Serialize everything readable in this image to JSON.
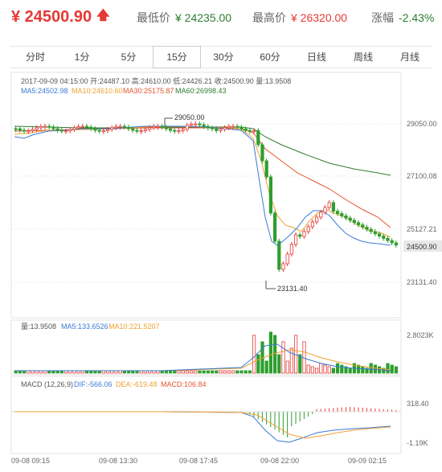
{
  "header": {
    "price": "¥ 24500.90",
    "low_label": "最低价",
    "low_value": "¥ 24235.00",
    "high_label": "最高价",
    "high_value": "¥ 26320.00",
    "change_label": "涨幅",
    "change_value": "-2.43%"
  },
  "tabs": [
    {
      "label": "分时",
      "active": false
    },
    {
      "label": "1分",
      "active": false
    },
    {
      "label": "5分",
      "active": false
    },
    {
      "label": "15分",
      "active": true
    },
    {
      "label": "30分",
      "active": false
    },
    {
      "label": "60分",
      "active": false
    },
    {
      "label": "日线",
      "active": false
    },
    {
      "label": "周线",
      "active": false
    },
    {
      "label": "月线",
      "active": false
    }
  ],
  "info": {
    "line1": "2017-09-09 04:15:00  开:24487.10  高:24610.00  低:24426.21  收:24500.90  量:13.9508",
    "ma5": "MA5:24502.98",
    "ma10": "MA10:24610.60",
    "ma30": "MA30:25175.87",
    "ma60": "MA60:26998.43",
    "vol": "量:13.9508",
    "vol_ma5": "MA5:133.6526",
    "vol_ma10": "MA10:221.5207",
    "macd_title": "MACD  (12,26,9)",
    "dif": "DIF:-566.06",
    "dea": "DEA:-619.48",
    "macd": "MACD:106.84"
  },
  "annotations": {
    "peak": "29050.00",
    "trough": "23131.40",
    "last_price_tag": "24500.90"
  },
  "colors": {
    "up": "#e53935",
    "down": "#2e9e2e",
    "ma5": "#3a7bd5",
    "ma10": "#f0a030",
    "ma30": "#e5532d",
    "ma60": "#2e7d32"
  },
  "chart_data": {
    "type": "candlestick",
    "y_ticks": [
      "29050.00",
      "27100.08",
      "25127.21",
      "23131.40"
    ],
    "volume_ticks": [
      "2.8023K"
    ],
    "macd_ticks": [
      "318.40",
      "-1.19K"
    ],
    "x_ticks": [
      "09-08 09:15",
      "09-08 13:30",
      "09-08 17:45",
      "09-08 22:00",
      "09-09 02:15"
    ],
    "ylim": [
      22400,
      29600
    ]
  }
}
